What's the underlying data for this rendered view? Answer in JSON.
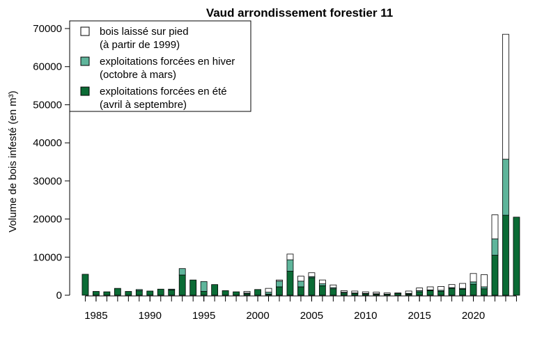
{
  "chart_data": {
    "type": "stacked_bar",
    "title": "Vaud arrondissement forestier 11",
    "ylabel": "Volume de bois infesté (en m³)",
    "x": [
      1984,
      1985,
      1986,
      1987,
      1988,
      1989,
      1990,
      1991,
      1992,
      1993,
      1994,
      1995,
      1996,
      1997,
      1998,
      1999,
      2000,
      2001,
      2002,
      2003,
      2004,
      2005,
      2006,
      2007,
      2008,
      2009,
      2010,
      2011,
      2012,
      2013,
      2014,
      2015,
      2016,
      2017,
      2018,
      2019,
      2020,
      2021,
      2022,
      2023,
      2024
    ],
    "series": [
      {
        "name": "exploitations forcées en été\n(avril à septembre)",
        "color": "#0b6b35",
        "values": [
          5500,
          1000,
          900,
          1800,
          1000,
          1200,
          1100,
          1600,
          1400,
          5300,
          4000,
          1000,
          2800,
          1200,
          900,
          400,
          1500,
          300,
          2200,
          6300,
          2200,
          4600,
          2500,
          1700,
          600,
          500,
          400,
          300,
          300,
          500,
          300,
          900,
          1200,
          1000,
          1800,
          1600,
          2900,
          1700,
          10500,
          21000,
          20500
        ]
      },
      {
        "name": "exploitations forcées en hiver\n(octobre à mars)",
        "color": "#5fb59b",
        "values": [
          0,
          0,
          0,
          0,
          0,
          300,
          0,
          0,
          200,
          1700,
          0,
          2600,
          0,
          0,
          0,
          200,
          0,
          500,
          1500,
          3000,
          1500,
          300,
          500,
          300,
          200,
          100,
          100,
          100,
          0,
          0,
          200,
          300,
          200,
          300,
          200,
          200,
          600,
          500,
          4300,
          14700,
          0
        ]
      },
      {
        "name": "bois laissé sur pied\n(à partir de 1999)",
        "color": "#ffffff",
        "values": [
          0,
          0,
          0,
          0,
          0,
          0,
          0,
          0,
          0,
          0,
          0,
          0,
          0,
          0,
          0,
          400,
          0,
          1000,
          300,
          1500,
          1300,
          1000,
          1000,
          700,
          400,
          500,
          400,
          400,
          300,
          100,
          600,
          700,
          800,
          1000,
          800,
          1300,
          2200,
          3200,
          6300,
          32800,
          0
        ]
      }
    ],
    "xlim": [
      1982.55,
      2025.2
    ],
    "xticks": [
      1985,
      1990,
      1995,
      2000,
      2005,
      2010,
      2015,
      2020
    ],
    "ylim": [
      0,
      70000
    ],
    "yticks": [
      0,
      10000,
      20000,
      30000,
      40000,
      50000,
      60000,
      70000
    ],
    "legend": "top-left"
  }
}
